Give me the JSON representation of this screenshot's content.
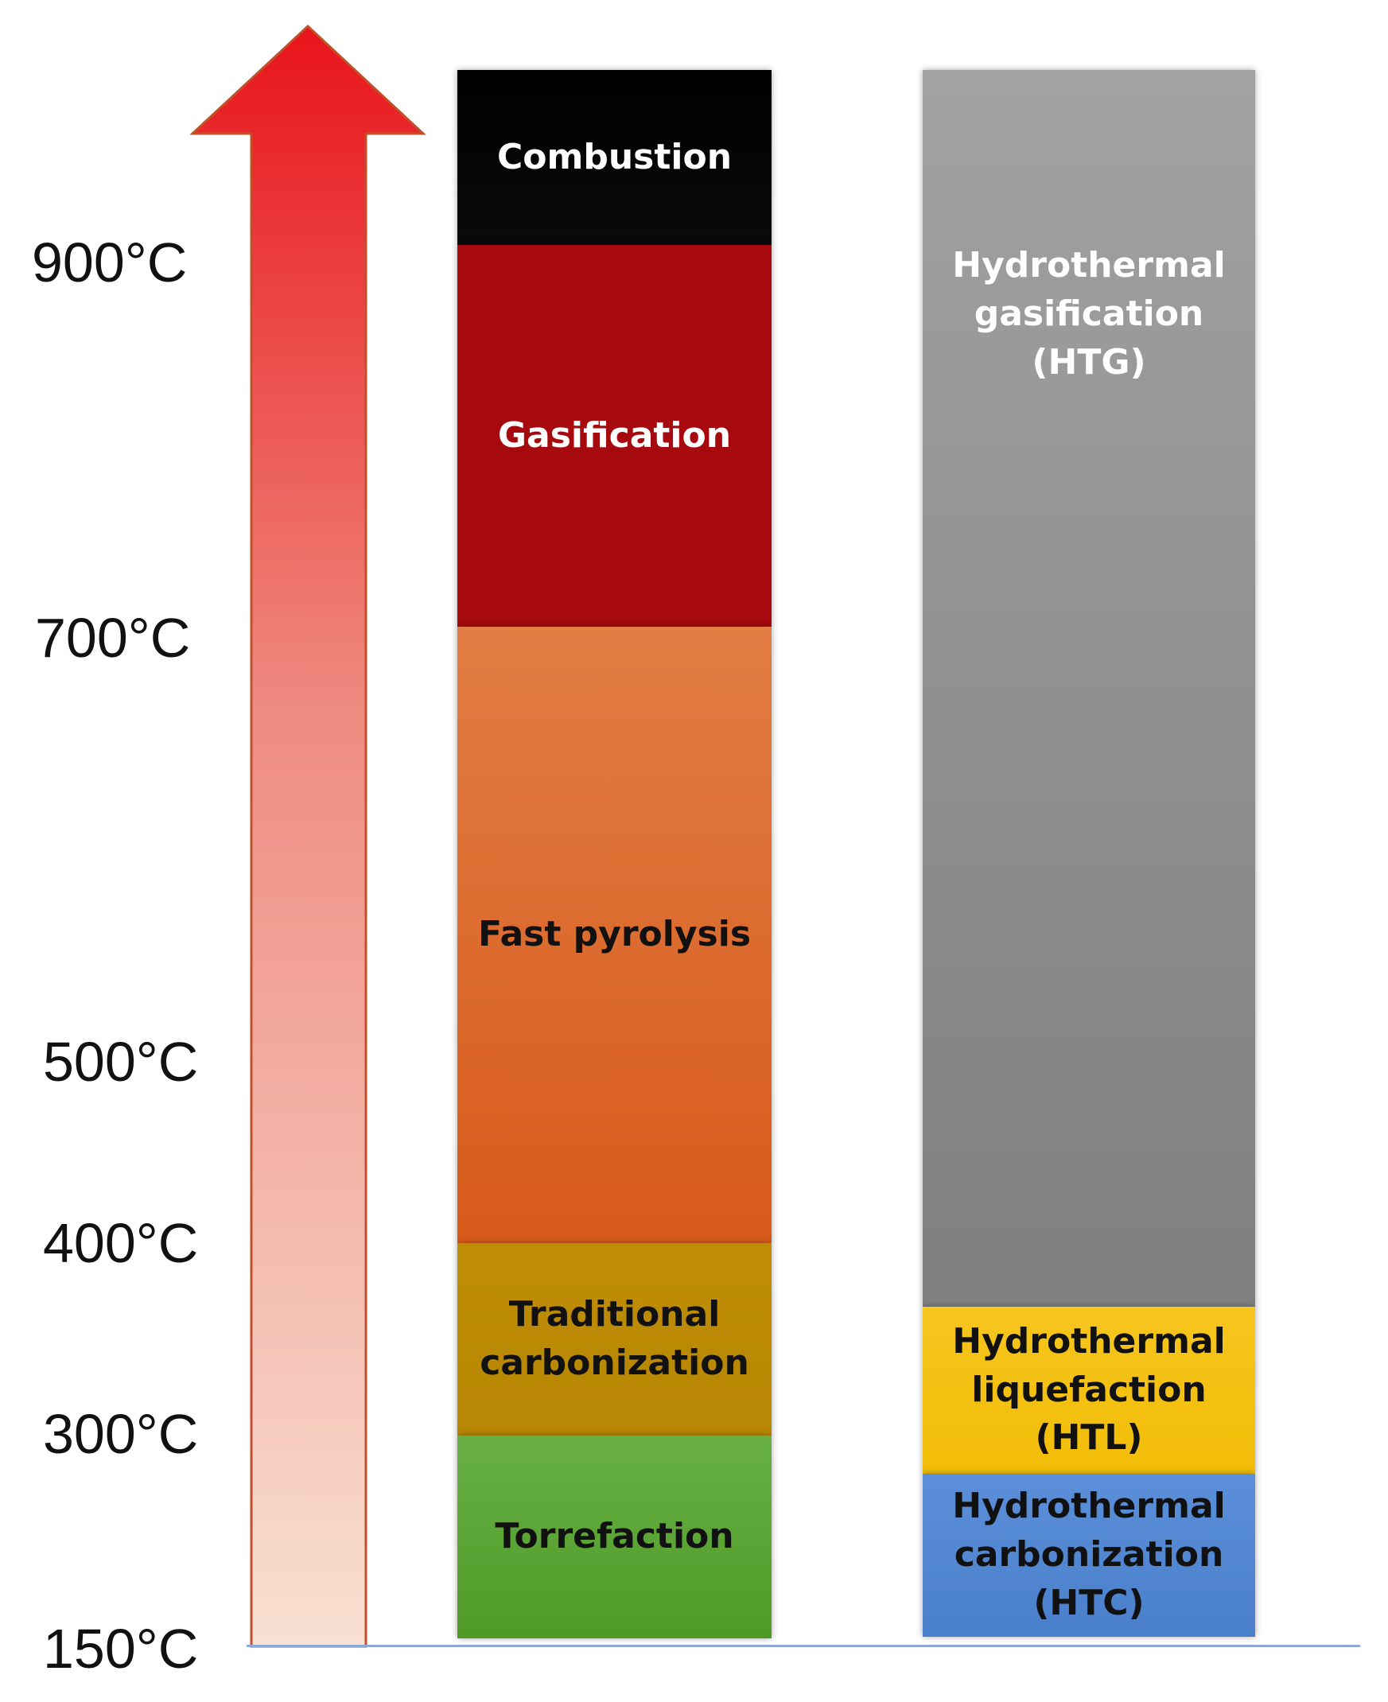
{
  "axis": {
    "ticks": [
      {
        "label": "900°C"
      },
      {
        "label": "700°C"
      },
      {
        "label": "500°C"
      },
      {
        "label": "400°C"
      },
      {
        "label": "300°C"
      },
      {
        "label": "150°C"
      }
    ],
    "arrow_top_color": "#e8141a",
    "arrow_bottom_color": "#f8e0d2",
    "baseline_color": "#8fa9d6"
  },
  "dry_processes": [
    {
      "label": "Combustion",
      "color_top": "#000000",
      "color_bottom": "#0a0a0a",
      "text_color": "#ffffff"
    },
    {
      "label": "Gasification",
      "color_top": "#a60a0e",
      "color_bottom": "#a60a0e",
      "text_color": "#ffffff"
    },
    {
      "label": "Fast pyrolysis",
      "color_top": "#e27d45",
      "color_bottom": "#d75a1a",
      "text_color": "#111111"
    },
    {
      "label": "Traditional\ncarbonization",
      "color_top": "#bf8d05",
      "color_bottom": "#b88704",
      "text_color": "#111111"
    },
    {
      "label": "Torrefaction",
      "color_top": "#68b045",
      "color_bottom": "#4f9a27",
      "text_color": "#111111"
    }
  ],
  "hydrothermal_processes": [
    {
      "label": "Hydrothermal\ngasification\n(HTG)",
      "color_top": "#a2a2a2",
      "color_bottom": "#7f7f7f",
      "text_color": "#ffffff"
    },
    {
      "label": "Hydrothermal\nliquefaction\n(HTL)",
      "color_top": "#f6c51e",
      "color_bottom": "#f2bd08",
      "text_color": "#111111"
    },
    {
      "label": "Hydrothermal\ncarbonization\n(HTC)",
      "color_top": "#5b8fd9",
      "color_bottom": "#4a7fcb",
      "text_color": "#111111"
    }
  ]
}
